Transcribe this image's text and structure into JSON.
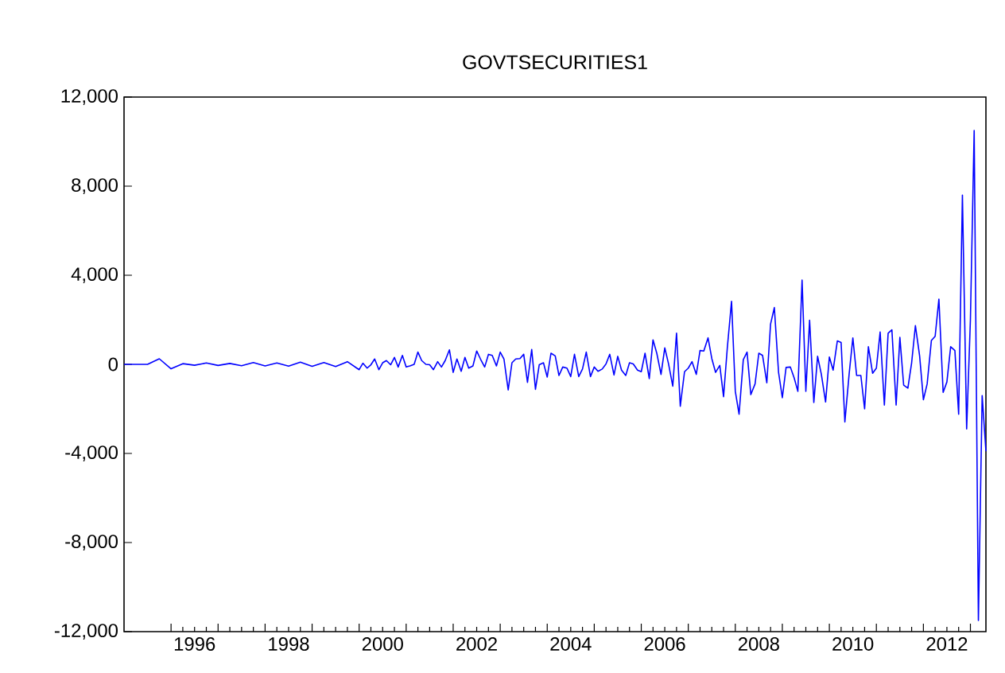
{
  "chart_data": {
    "type": "line",
    "title": "GOVTSECURITIES1",
    "x": [
      "1995-01",
      "1995-04",
      "1995-07",
      "1995-10",
      "1996-01",
      "1996-04",
      "1996-07",
      "1996-10",
      "1997-01",
      "1997-04",
      "1997-07",
      "1997-10",
      "1998-01",
      "1998-04",
      "1998-07",
      "1998-10",
      "1999-01",
      "1999-04",
      "1999-07",
      "1999-10",
      "2000-01",
      "2000-02",
      "2000-03",
      "2000-04",
      "2000-05",
      "2000-06",
      "2000-07",
      "2000-08",
      "2000-09",
      "2000-10",
      "2000-11",
      "2000-12",
      "2001-01",
      "2001-02",
      "2001-03",
      "2001-04",
      "2001-05",
      "2001-06",
      "2001-07",
      "2001-08",
      "2001-09",
      "2001-10",
      "2001-11",
      "2001-12",
      "2002-01",
      "2002-02",
      "2002-03",
      "2002-04",
      "2002-05",
      "2002-06",
      "2002-07",
      "2002-08",
      "2002-09",
      "2002-10",
      "2002-11",
      "2002-12",
      "2003-01",
      "2003-02",
      "2003-03",
      "2003-04",
      "2003-05",
      "2003-06",
      "2003-07",
      "2003-08",
      "2003-09",
      "2003-10",
      "2003-11",
      "2003-12",
      "2004-01",
      "2004-02",
      "2004-03",
      "2004-04",
      "2004-05",
      "2004-06",
      "2004-07",
      "2004-08",
      "2004-09",
      "2004-10",
      "2004-11",
      "2004-12",
      "2005-01",
      "2005-02",
      "2005-03",
      "2005-04",
      "2005-05",
      "2005-06",
      "2005-07",
      "2005-08",
      "2005-09",
      "2005-10",
      "2005-11",
      "2005-12",
      "2006-01",
      "2006-02",
      "2006-03",
      "2006-04",
      "2006-05",
      "2006-06",
      "2006-07",
      "2006-08",
      "2006-09",
      "2006-10",
      "2006-11",
      "2006-12",
      "2007-01",
      "2007-02",
      "2007-03",
      "2007-04",
      "2007-05",
      "2007-06",
      "2007-07",
      "2007-08",
      "2007-09",
      "2007-10",
      "2007-11",
      "2007-12",
      "2008-01",
      "2008-02",
      "2008-03",
      "2008-04",
      "2008-05",
      "2008-06",
      "2008-07",
      "2008-08",
      "2008-09",
      "2008-10",
      "2008-11",
      "2008-12",
      "2009-01",
      "2009-02",
      "2009-03",
      "2009-04",
      "2009-05",
      "2009-06",
      "2009-07",
      "2009-08",
      "2009-09",
      "2009-10",
      "2009-11",
      "2009-12",
      "2010-01",
      "2010-02",
      "2010-03",
      "2010-04",
      "2010-05",
      "2010-06",
      "2010-07",
      "2010-08",
      "2010-09",
      "2010-10",
      "2010-11",
      "2010-12",
      "2011-01",
      "2011-02",
      "2011-03",
      "2011-04",
      "2011-05",
      "2011-06",
      "2011-07",
      "2011-08",
      "2011-09",
      "2011-10",
      "2011-11",
      "2011-12",
      "2012-01",
      "2012-02",
      "2012-03",
      "2012-04",
      "2012-05",
      "2012-06",
      "2012-07",
      "2012-08",
      "2012-09",
      "2012-10",
      "2012-11",
      "2012-12",
      "2013-01",
      "2013-02",
      "2013-03",
      "2013-04",
      "2013-05"
    ],
    "series": [
      {
        "color": "#0000ff",
        "values": [
          0,
          0,
          0,
          250,
          -200,
          30,
          -40,
          60,
          -50,
          40,
          -60,
          80,
          -70,
          60,
          -80,
          100,
          -90,
          80,
          -100,
          120,
          -240,
          50,
          -170,
          -20,
          240,
          -240,
          70,
          170,
          -20,
          310,
          -120,
          400,
          -120,
          -70,
          0,
          550,
          170,
          0,
          -20,
          -240,
          120,
          -120,
          170,
          650,
          -360,
          240,
          -310,
          310,
          -170,
          -70,
          600,
          240,
          -120,
          450,
          400,
          -70,
          550,
          240,
          -1150,
          70,
          240,
          260,
          450,
          -810,
          670,
          -1120,
          -20,
          70,
          -570,
          500,
          380,
          -500,
          -120,
          -170,
          -550,
          450,
          -550,
          -210,
          550,
          -550,
          -120,
          -310,
          -210,
          20,
          450,
          -480,
          360,
          -260,
          -500,
          70,
          20,
          -260,
          -330,
          500,
          -640,
          1100,
          500,
          -450,
          740,
          20,
          -980,
          1400,
          -1880,
          -330,
          -170,
          120,
          -450,
          620,
          600,
          1190,
          260,
          -360,
          -50,
          -1450,
          740,
          2830,
          -1210,
          -2240,
          210,
          550,
          -1360,
          -880,
          500,
          400,
          -830,
          1810,
          2550,
          -360,
          -1500,
          -140,
          -120,
          -600,
          -1210,
          3780,
          -1210,
          1980,
          -1710,
          360,
          -450,
          -1690,
          330,
          -260,
          1050,
          980,
          -2590,
          -450,
          1190,
          -500,
          -500,
          -2000,
          790,
          -400,
          -170,
          1450,
          -1830,
          1400,
          1550,
          -1830,
          1210,
          -930,
          -1070,
          70,
          1740,
          380,
          -1590,
          -880,
          1070,
          1260,
          2930,
          -1260,
          -790,
          790,
          620,
          -2240,
          7600,
          -2900,
          2000,
          10500,
          -11500,
          -1400,
          -3900
        ]
      }
    ],
    "xlim": [
      "1995-01",
      "2013-05"
    ],
    "xticks": [
      {
        "value": "1996-01",
        "label": null
      },
      {
        "value": "1997-01",
        "label": null
      },
      {
        "value": "1998-01",
        "label": null
      },
      {
        "value": "1999-01",
        "label": null
      },
      {
        "value": "2000-01",
        "label": null
      },
      {
        "value": "2001-01",
        "label": null
      },
      {
        "value": "2002-01",
        "label": null
      },
      {
        "value": "2003-01",
        "label": null
      },
      {
        "value": "2004-01",
        "label": null
      },
      {
        "value": "2005-01",
        "label": null
      },
      {
        "value": "2006-01",
        "label": null
      },
      {
        "value": "2007-01",
        "label": null
      },
      {
        "value": "2008-01",
        "label": null
      },
      {
        "value": "2009-01",
        "label": null
      },
      {
        "value": "2010-01",
        "label": null
      },
      {
        "value": "2011-01",
        "label": null
      },
      {
        "value": "2012-01",
        "label": null
      },
      {
        "value": "2013-01",
        "label": null
      },
      {
        "value": "1996-07",
        "label": "1996"
      },
      {
        "value": "1998-07",
        "label": "1998"
      },
      {
        "value": "2000-07",
        "label": "2000"
      },
      {
        "value": "2002-07",
        "label": "2002"
      },
      {
        "value": "2004-07",
        "label": "2004"
      },
      {
        "value": "2006-07",
        "label": "2006"
      },
      {
        "value": "2008-07",
        "label": "2008"
      },
      {
        "value": "2010-07",
        "label": "2010"
      },
      {
        "value": "2012-07",
        "label": "2012"
      }
    ],
    "ylim": [
      -12000,
      12000
    ],
    "yticks": [
      {
        "value": -12000,
        "label": "-12,000"
      },
      {
        "value": -8000,
        "label": "-8,000"
      },
      {
        "value": -4000,
        "label": "-4,000"
      },
      0,
      {
        "value": 4000,
        "label": "4,000"
      },
      {
        "value": 8000,
        "label": "8,000"
      },
      {
        "value": 12000,
        "label": "12,000"
      }
    ],
    "line_style": "solid"
  }
}
